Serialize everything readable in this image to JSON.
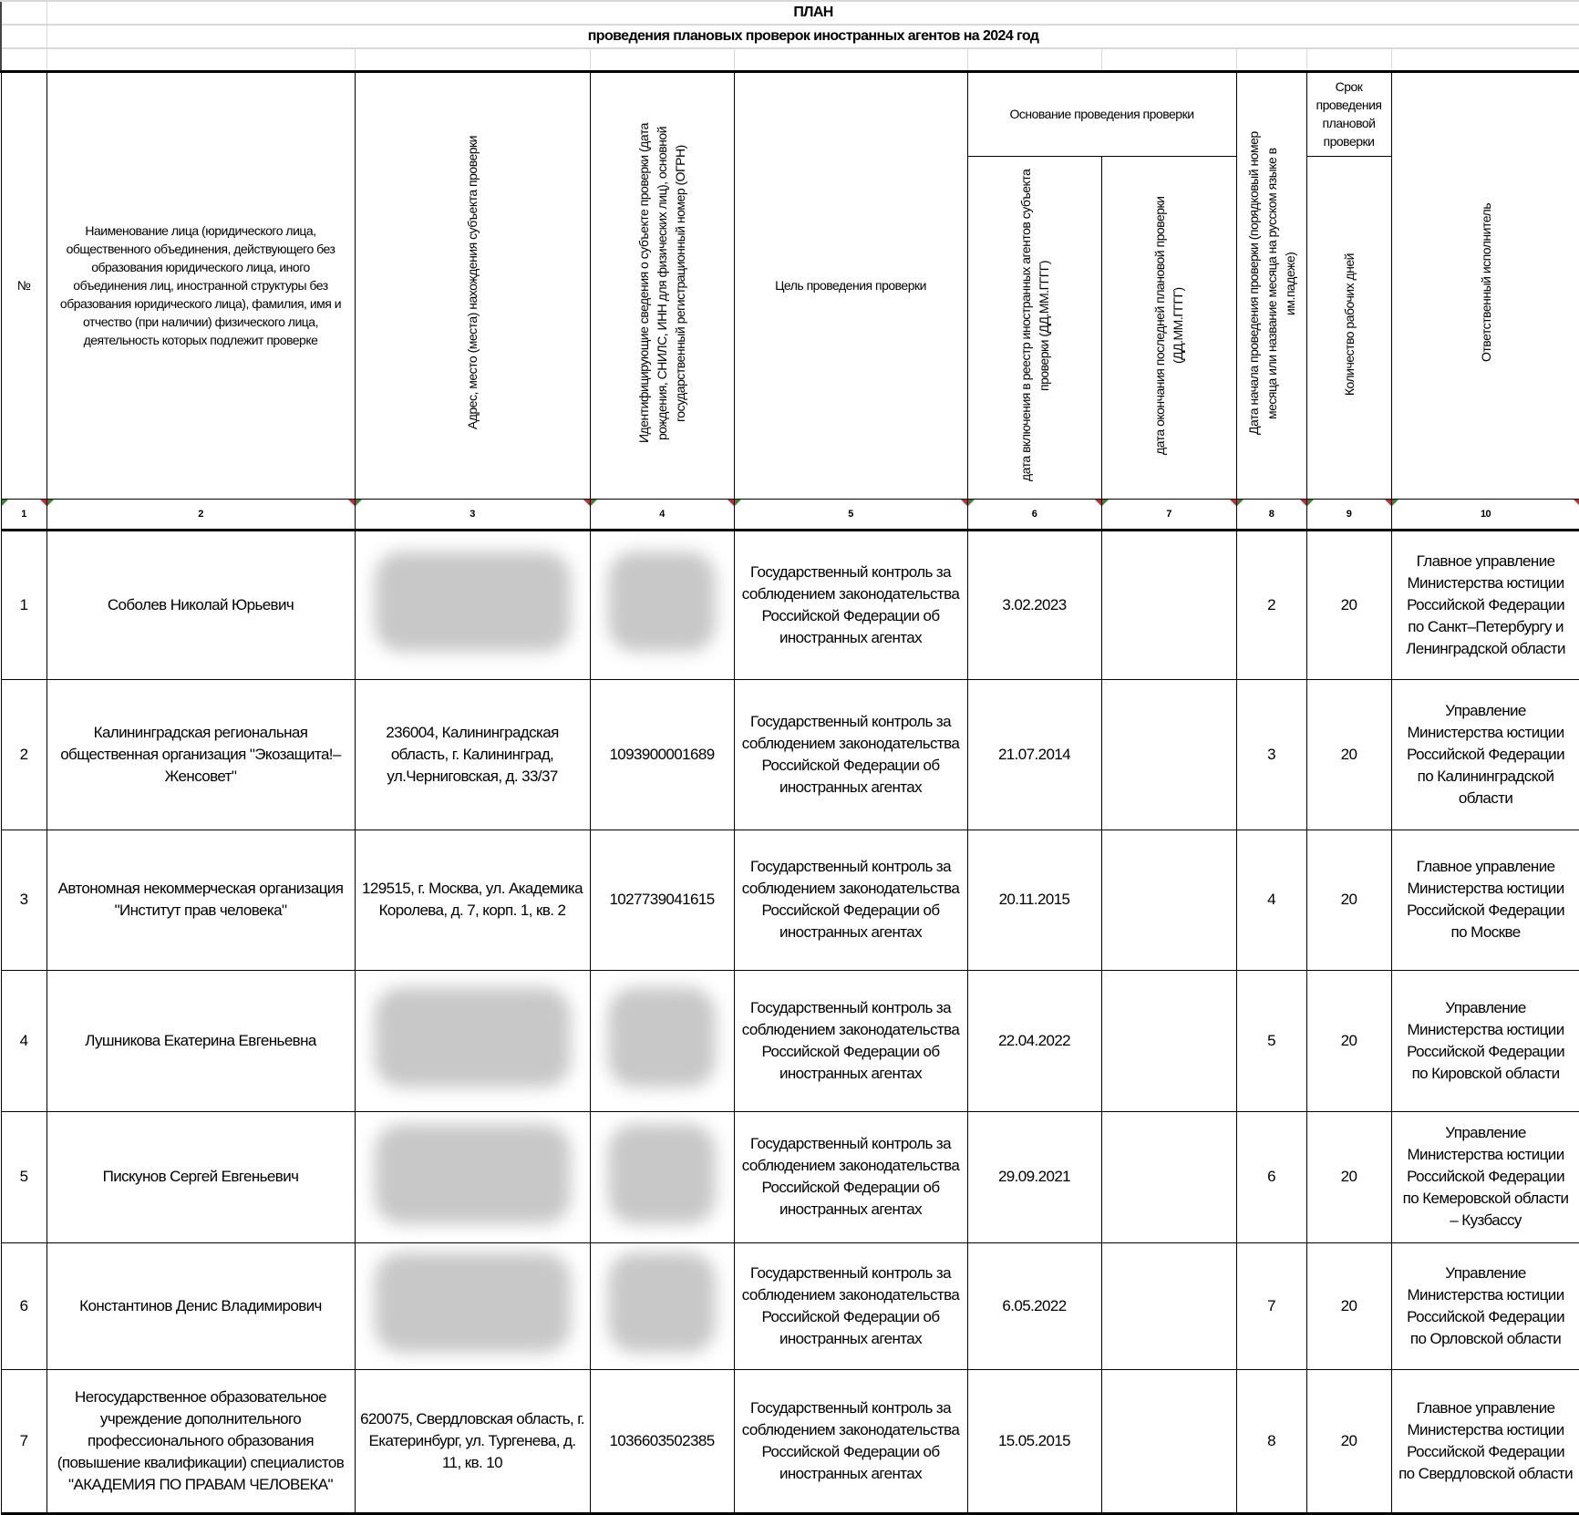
{
  "title": "ПЛАН",
  "subtitle": "проведения плановых проверок иностранных агентов на 2024 год",
  "headers": {
    "no": "№",
    "name": "Наименование лица (юридического лица, общественного объединения, действующего без образования юридического лица, иного объединения лиц, иностранной структуры без образования юридического лица), фамилия, имя и отчество (при наличии) физического лица, деятельность которых подлежит проверке",
    "address": "Адрес, место (места) нахождения субъекта проверки",
    "ident": "Идентифицирующие сведения о субъекте проверки (дата рождения, СНИЛС, ИНН для физических лиц), основной государственный регистрационный номер (ОГРН)",
    "purpose": "Цель проведения проверки",
    "basis": "Основание проведения проверки",
    "basis_registry": "дата включения в реестр иностранных агентов субъекта проверки (ДД.ММ.ГГГГ)",
    "basis_last": "дата окончания последней плановой проверки (ДД.ММ.ГГГГ)",
    "start": "Дата начала проведения проверки (порядковый номер месяца или название месяца на русском языке в им.падеже)",
    "term": "Срок проведения плановой проверки",
    "days": "Количество рабочих дней",
    "responsible": "Ответственный исполнитель"
  },
  "column_numbers": [
    "1",
    "2",
    "3",
    "4",
    "5",
    "6",
    "7",
    "8",
    "9",
    "10"
  ],
  "rows": [
    {
      "no": "1",
      "name": "Соболев Николай Юрьевич",
      "address": "",
      "ident": "",
      "address_redacted": true,
      "ident_redacted": true,
      "purpose": "Государственный контроль за соблюдением законодательства Российской Федерации об иностранных агентах",
      "registry_date": "3.02.2023",
      "last_check": "",
      "start": "2",
      "days": "20",
      "responsible": "Главное управление Министерства юстиции Российской Федерации по Санкт–Петербургу и Ленинградской области"
    },
    {
      "no": "2",
      "name": "Калининградская региональная общественная организация \"Экозащита!–Женсовет\"",
      "address": "236004, Калининградская область, г. Калининград, ул.Черниговская, д. 33/37",
      "ident": "1093900001689",
      "purpose": "Государственный контроль за соблюдением законодательства Российской Федерации об иностранных агентах",
      "registry_date": "21.07.2014",
      "last_check": "",
      "start": "3",
      "days": "20",
      "responsible": "Управление Министерства юстиции Российской Федерации по Калининградской области"
    },
    {
      "no": "3",
      "name": "Автономная некоммерческая организация \"Институт прав человека\"",
      "address": "129515, г. Москва, ул. Академика Королева, д. 7, корп. 1, кв. 2",
      "ident": "1027739041615",
      "purpose": "Государственный контроль за соблюдением законодательства Российской Федерации об иностранных агентах",
      "registry_date": "20.11.2015",
      "last_check": "",
      "start": "4",
      "days": "20",
      "responsible": "Главное управление Министерства юстиции Российской Федерации по Москве"
    },
    {
      "no": "4",
      "name": "Лушникова Екатерина Евгеньевна",
      "address": "",
      "ident": "",
      "address_redacted": true,
      "ident_redacted": true,
      "purpose": "Государственный контроль за соблюдением законодательства Российской Федерации об иностранных агентах",
      "registry_date": "22.04.2022",
      "last_check": "",
      "start": "5",
      "days": "20",
      "responsible": "Управление Министерства юстиции Российской Федерации по Кировской области"
    },
    {
      "no": "5",
      "name": "Пискунов Сергей Евгеньевич",
      "address": "",
      "ident": "",
      "address_redacted": true,
      "ident_redacted": true,
      "purpose": "Государственный контроль за соблюдением законодательства Российской Федерации об иностранных агентах",
      "registry_date": "29.09.2021",
      "last_check": "",
      "start": "6",
      "days": "20",
      "responsible": "Управление Министерства юстиции Российской Федерации по Кемеровской области – Кузбассу"
    },
    {
      "no": "6",
      "name": "Константинов Денис Владимирович",
      "address": "",
      "ident": "",
      "address_redacted": true,
      "ident_redacted": true,
      "purpose": "Государственный контроль за соблюдением законодательства Российской Федерации об иностранных агентах",
      "registry_date": "6.05.2022",
      "last_check": "",
      "start": "7",
      "days": "20",
      "responsible": "Управление Министерства юстиции Российской Федерации по Орловской области"
    },
    {
      "no": "7",
      "name": "Негосударственное образовательное учреждение дополнительного профессионального образования (повышение квалификации) специалистов \"АКАДЕМИЯ ПО ПРАВАМ ЧЕЛОВЕКА\"",
      "address": "620075, Свердловская область, г. Екатеринбург, ул.  Тургенева, д. 11, кв. 10",
      "ident": "1036603502385",
      "purpose": "Государственный контроль за соблюдением законодательства Российской Федерации об иностранных агентах",
      "registry_date": "15.05.2015",
      "last_check": "",
      "start": "8",
      "days": "20",
      "responsible": "Главное управление Министерства юстиции Российской Федерации по Свердловской области"
    }
  ]
}
